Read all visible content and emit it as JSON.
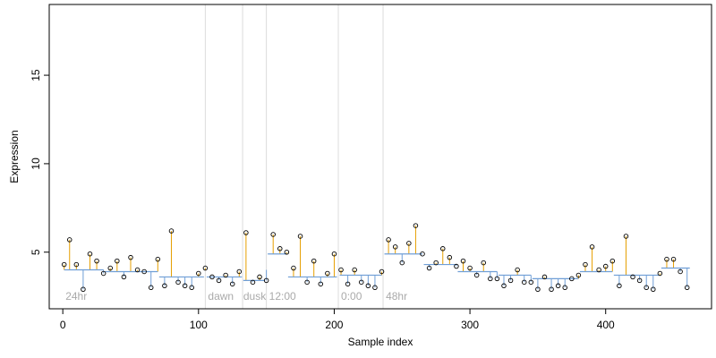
{
  "chart_data": {
    "type": "scatter",
    "title": "",
    "xlabel": "Sample index",
    "ylabel": "Expression",
    "xlim": [
      -10,
      478
    ],
    "ylim": [
      1.8,
      19.0
    ],
    "x_ticks": [
      0,
      100,
      200,
      300,
      400
    ],
    "y_ticks": [
      5,
      10,
      15
    ],
    "grid": false,
    "legend": "none",
    "colors": {
      "points_stroke": "#000000",
      "above_segment": "#e69f00",
      "below_segment": "#6f9ed6",
      "separator": "#dcdcdc",
      "annotation": "#aaaaaa"
    },
    "separators_x": [
      105,
      132.5,
      150,
      203,
      236
    ],
    "annotations": [
      {
        "text": "24hr",
        "x": 2,
        "y": 2.3
      },
      {
        "text": "dawn",
        "x": 107,
        "y": 2.3
      },
      {
        "text": "dusk",
        "x": 133,
        "y": 2.3
      },
      {
        "text": "12:00",
        "x": 152,
        "y": 2.3
      },
      {
        "text": "0:00",
        "x": 205,
        "y": 2.3
      },
      {
        "text": "48hr",
        "x": 238,
        "y": 2.3
      }
    ],
    "baseline_segments": [
      {
        "x0": 1,
        "x1": 30,
        "y": 4.0
      },
      {
        "x0": 31,
        "x1": 70,
        "y": 3.9
      },
      {
        "x0": 71,
        "x1": 104,
        "y": 3.6
      },
      {
        "x0": 106,
        "x1": 132,
        "y": 3.6
      },
      {
        "x0": 133,
        "x1": 149,
        "y": 3.4
      },
      {
        "x0": 151,
        "x1": 165,
        "y": 4.9
      },
      {
        "x0": 166,
        "x1": 202,
        "y": 3.6
      },
      {
        "x0": 204,
        "x1": 235,
        "y": 3.7
      },
      {
        "x0": 237,
        "x1": 265,
        "y": 4.9
      },
      {
        "x0": 266,
        "x1": 290,
        "y": 4.3
      },
      {
        "x0": 291,
        "x1": 320,
        "y": 3.9
      },
      {
        "x0": 321,
        "x1": 345,
        "y": 3.7
      },
      {
        "x0": 346,
        "x1": 380,
        "y": 3.5
      },
      {
        "x0": 381,
        "x1": 405,
        "y": 3.9
      },
      {
        "x0": 406,
        "x1": 440,
        "y": 3.7
      },
      {
        "x0": 441,
        "x1": 462,
        "y": 4.1
      }
    ],
    "series": [
      {
        "x": [
          1,
          5,
          10,
          15,
          20,
          25,
          30,
          35,
          40,
          45,
          50,
          55,
          60,
          65,
          70,
          75,
          80,
          85,
          90,
          95,
          100,
          105,
          110,
          115,
          120,
          125,
          130,
          135,
          140,
          145,
          150,
          155,
          160,
          165,
          170,
          175,
          180,
          185,
          190,
          195,
          200,
          205,
          210,
          215,
          220,
          225,
          230,
          235,
          240,
          245,
          250,
          255,
          260,
          265,
          270,
          275,
          280,
          285,
          290,
          295,
          300,
          305,
          310,
          315,
          320,
          325,
          330,
          335,
          340,
          345,
          350,
          355,
          360,
          365,
          370,
          375,
          380,
          385,
          390,
          395,
          400,
          405,
          410,
          415,
          420,
          425,
          430,
          435,
          440,
          445,
          450,
          455,
          460
        ],
        "y": [
          4.3,
          5.7,
          4.3,
          2.9,
          4.9,
          4.5,
          3.8,
          4.1,
          4.5,
          3.6,
          4.7,
          4.0,
          3.9,
          3.0,
          4.6,
          3.1,
          6.2,
          3.3,
          3.1,
          3.0,
          3.8,
          4.1,
          3.6,
          3.4,
          3.7,
          3.2,
          3.9,
          6.1,
          3.3,
          3.6,
          3.4,
          6.0,
          5.2,
          5.0,
          4.1,
          5.9,
          3.3,
          4.5,
          3.2,
          3.8,
          4.9,
          4.0,
          3.2,
          4.0,
          3.3,
          3.1,
          3.0,
          3.9,
          5.7,
          5.3,
          4.4,
          5.5,
          6.5,
          4.9,
          4.1,
          4.4,
          5.2,
          4.7,
          4.2,
          4.5,
          4.1,
          3.7,
          4.4,
          3.5,
          3.5,
          3.1,
          3.4,
          4.0,
          3.3,
          3.3,
          2.9,
          3.6,
          2.9,
          3.1,
          3.0,
          3.5,
          3.7,
          4.3,
          5.3,
          4.0,
          4.2,
          4.5,
          3.1,
          5.9,
          3.6,
          3.4,
          3.0,
          2.9,
          3.8,
          4.6,
          4.6,
          3.9,
          3.0
        ]
      }
    ]
  }
}
